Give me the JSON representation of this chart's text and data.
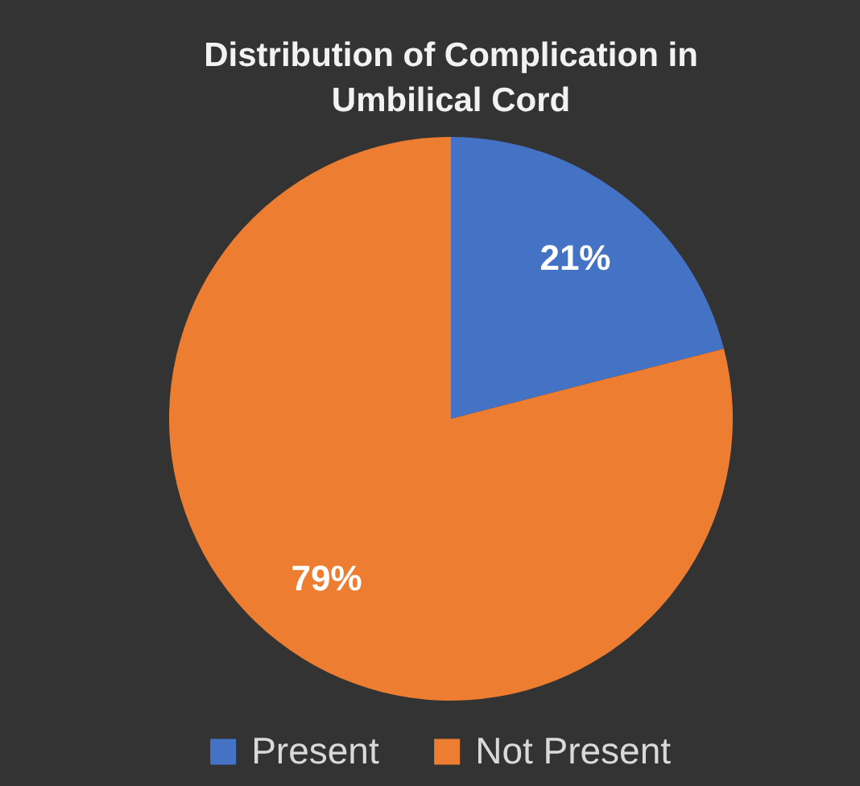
{
  "chart_data": {
    "type": "pie",
    "title": "Distribution of Complication in Umbilical Cord",
    "categories": [
      "Present",
      "Not Present"
    ],
    "values": [
      21,
      79
    ],
    "colors": [
      "#4472c4",
      "#ed7d31"
    ],
    "value_labels": [
      "21%",
      "79%"
    ],
    "legend": "bottom"
  }
}
